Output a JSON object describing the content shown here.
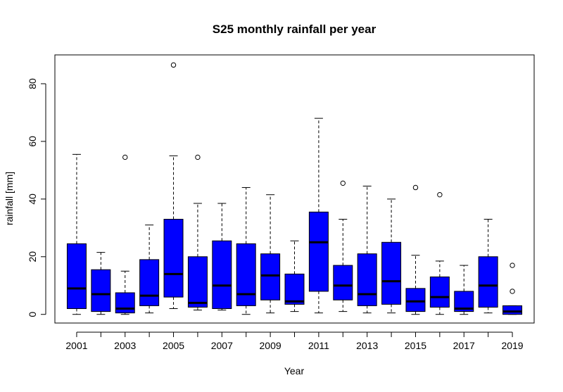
{
  "chart_data": {
    "type": "boxplot",
    "title": "S25 monthly rainfall per year",
    "xlabel": "Year",
    "ylabel": "rainfall [mm]",
    "ylim": [
      -3,
      90
    ],
    "yticks": [
      0,
      20,
      40,
      60,
      80
    ],
    "xtick_labels": [
      "2001",
      "2003",
      "2005",
      "2007",
      "2009",
      "2011",
      "2013",
      "2015",
      "2017",
      "2019"
    ],
    "box_color": "#0000ff",
    "grid": false,
    "categories": [
      "2001",
      "2002",
      "2003",
      "2004",
      "2005",
      "2006",
      "2007",
      "2008",
      "2009",
      "2010",
      "2011",
      "2012",
      "2013",
      "2014",
      "2015",
      "2016",
      "2017",
      "2018",
      "2019"
    ],
    "boxes": [
      {
        "year": "2001",
        "min": 0.0,
        "q1": 2.0,
        "median": 9.0,
        "q3": 24.5,
        "max": 55.5,
        "outliers": []
      },
      {
        "year": "2002",
        "min": 0.0,
        "q1": 1.0,
        "median": 7.0,
        "q3": 15.5,
        "max": 21.5,
        "outliers": []
      },
      {
        "year": "2003",
        "min": 0.0,
        "q1": 0.5,
        "median": 2.0,
        "q3": 7.5,
        "max": 15.0,
        "outliers": [
          54.5
        ]
      },
      {
        "year": "2004",
        "min": 0.5,
        "q1": 3.0,
        "median": 6.5,
        "q3": 19.0,
        "max": 31.0,
        "outliers": []
      },
      {
        "year": "2005",
        "min": 2.0,
        "q1": 6.0,
        "median": 14.0,
        "q3": 33.0,
        "max": 55.0,
        "outliers": [
          86.5
        ]
      },
      {
        "year": "2006",
        "min": 1.5,
        "q1": 2.5,
        "median": 4.0,
        "q3": 20.0,
        "max": 38.5,
        "outliers": [
          54.5
        ]
      },
      {
        "year": "2007",
        "min": 1.5,
        "q1": 2.0,
        "median": 10.0,
        "q3": 25.5,
        "max": 38.5,
        "outliers": []
      },
      {
        "year": "2008",
        "min": 0.0,
        "q1": 3.0,
        "median": 7.0,
        "q3": 24.5,
        "max": 44.0,
        "outliers": []
      },
      {
        "year": "2009",
        "min": 0.5,
        "q1": 5.0,
        "median": 13.5,
        "q3": 21.0,
        "max": 41.5,
        "outliers": []
      },
      {
        "year": "2010",
        "min": 1.0,
        "q1": 3.5,
        "median": 4.5,
        "q3": 14.0,
        "max": 25.5,
        "outliers": []
      },
      {
        "year": "2011",
        "min": 0.5,
        "q1": 8.0,
        "median": 25.0,
        "q3": 35.5,
        "max": 68.0,
        "outliers": []
      },
      {
        "year": "2012",
        "min": 1.0,
        "q1": 5.0,
        "median": 10.0,
        "q3": 17.0,
        "max": 33.0,
        "outliers": [
          45.5
        ]
      },
      {
        "year": "2013",
        "min": 0.5,
        "q1": 3.0,
        "median": 7.0,
        "q3": 21.0,
        "max": 44.5,
        "outliers": []
      },
      {
        "year": "2014",
        "min": 0.5,
        "q1": 3.5,
        "median": 11.5,
        "q3": 25.0,
        "max": 40.0,
        "outliers": []
      },
      {
        "year": "2015",
        "min": 0.0,
        "q1": 1.0,
        "median": 4.5,
        "q3": 9.0,
        "max": 20.5,
        "outliers": [
          44.0
        ]
      },
      {
        "year": "2016",
        "min": 0.0,
        "q1": 2.5,
        "median": 6.0,
        "q3": 13.0,
        "max": 18.5,
        "outliers": [
          41.5
        ]
      },
      {
        "year": "2017",
        "min": 0.0,
        "q1": 1.0,
        "median": 2.0,
        "q3": 8.0,
        "max": 17.0,
        "outliers": []
      },
      {
        "year": "2018",
        "min": 0.5,
        "q1": 2.5,
        "median": 10.0,
        "q3": 20.0,
        "max": 33.0,
        "outliers": []
      },
      {
        "year": "2019",
        "min": 0.0,
        "q1": 0.0,
        "median": 1.0,
        "q3": 3.0,
        "max": 3.0,
        "outliers": [
          8.0,
          17.0
        ]
      }
    ]
  }
}
